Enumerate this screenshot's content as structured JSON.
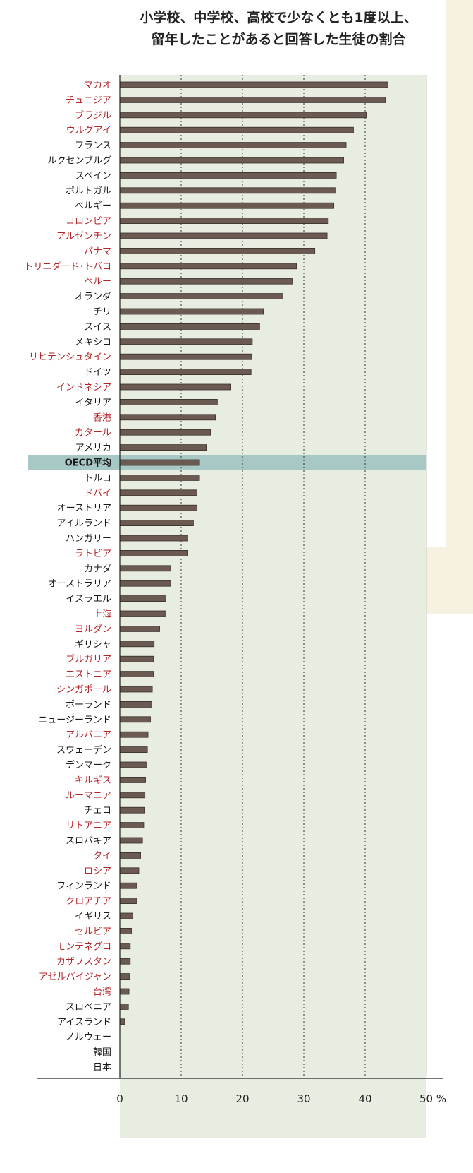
{
  "title": {
    "line1": "小学校、中学校、高校で少なくとも1度以上、",
    "line2": "留年したことがあると回答した生徒の割合"
  },
  "colors": {
    "bar_fill": "#6b5a52",
    "bar_stroke": "#3a2e29",
    "label_black": "#1a1a1a",
    "label_red": "#b3262a",
    "oecd_band": "#a8c8c6",
    "plot_bg": "#e8ede2",
    "side_strip": "#f6f1e1"
  },
  "chart_data": {
    "type": "bar",
    "orientation": "horizontal",
    "title": "小学校、中学校、高校で少なくとも1度以上、留年したことがあると回答した生徒の割合",
    "xlim": [
      0,
      50
    ],
    "xticks": [
      "0",
      "10",
      "20",
      "30",
      "40",
      "50 %"
    ],
    "gridlines": [
      10,
      20,
      30,
      40
    ],
    "highlight_category": "OECD平均",
    "categories": [
      "マカオ",
      "チュニジア",
      "ブラジル",
      "ウルグアイ",
      "フランス",
      "ルクセンブルグ",
      "スペイン",
      "ポルトガル",
      "ベルギー",
      "コロンビア",
      "アルゼンチン",
      "パナマ",
      "トリニダード･トバコ",
      "ペルー",
      "オランダ",
      "チリ",
      "スイス",
      "メキシコ",
      "リヒテンシュタイン",
      "ドイツ",
      "インドネシア",
      "イタリア",
      "香港",
      "カタール",
      "アメリカ",
      "OECD平均",
      "トルコ",
      "ドバイ",
      "オーストリア",
      "アイルランド",
      "ハンガリー",
      "ラトビア",
      "カナダ",
      "オーストラリア",
      "イスラエル",
      "上海",
      "ヨルダン",
      "ギリシャ",
      "ブルガリア",
      "エストニア",
      "シンガポール",
      "ポーランド",
      "ニュージーランド",
      "アルバニア",
      "スウェーデン",
      "デンマーク",
      "キルギス",
      "ルーマニア",
      "チェコ",
      "リトアニア",
      "スロバキア",
      "タイ",
      "ロシア",
      "フィンランド",
      "クロアチア",
      "イギリス",
      "セルビア",
      "モンテネグロ",
      "カザフスタン",
      "アゼルバイジャン",
      "台湾",
      "スロベニア",
      "アイスランド",
      "ノルウェー",
      "韓国",
      "日本"
    ],
    "values": [
      43.7,
      43.3,
      40.2,
      38.1,
      36.9,
      36.5,
      35.3,
      35.1,
      34.9,
      34.0,
      33.8,
      31.8,
      28.8,
      28.1,
      26.6,
      23.4,
      22.8,
      21.6,
      21.5,
      21.4,
      18.0,
      15.9,
      15.6,
      14.8,
      14.1,
      13.0,
      13.0,
      12.6,
      12.6,
      12.0,
      11.1,
      11.0,
      8.3,
      8.3,
      7.5,
      7.4,
      6.5,
      5.6,
      5.5,
      5.5,
      5.3,
      5.2,
      5.0,
      4.6,
      4.5,
      4.3,
      4.2,
      4.1,
      4.0,
      3.9,
      3.7,
      3.4,
      3.1,
      2.7,
      2.7,
      2.1,
      1.9,
      1.7,
      1.7,
      1.6,
      1.5,
      1.4,
      0.8,
      0,
      0,
      0
    ],
    "label_colors": [
      "red",
      "red",
      "red",
      "red",
      "black",
      "black",
      "black",
      "black",
      "black",
      "red",
      "red",
      "red",
      "red",
      "red",
      "black",
      "black",
      "black",
      "black",
      "red",
      "black",
      "red",
      "black",
      "red",
      "red",
      "black",
      "black",
      "black",
      "red",
      "black",
      "black",
      "black",
      "red",
      "black",
      "black",
      "black",
      "red",
      "red",
      "black",
      "red",
      "red",
      "red",
      "black",
      "black",
      "red",
      "black",
      "black",
      "red",
      "red",
      "black",
      "red",
      "black",
      "red",
      "red",
      "black",
      "red",
      "black",
      "red",
      "red",
      "red",
      "red",
      "red",
      "black",
      "black",
      "black",
      "black",
      "black"
    ]
  }
}
